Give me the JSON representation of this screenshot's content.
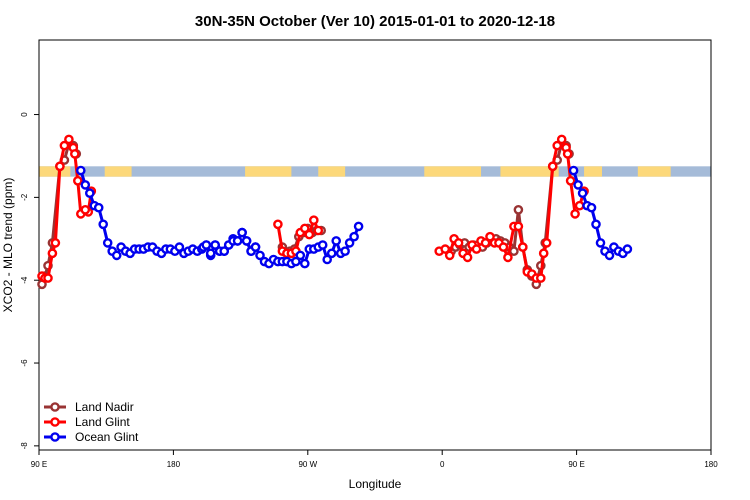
{
  "chart_data": {
    "type": "line",
    "title": "30N-35N October (Ver 10)   2015-01-01 to 2020-12-18",
    "xlabel": "Longitude",
    "ylabel": "XCO2 - MLO trend (ppm)",
    "x_ticks": [
      {
        "value": 90,
        "label": "90 E"
      },
      {
        "value": 180,
        "label": "180"
      },
      {
        "value": 270,
        "label": "90 W"
      },
      {
        "value": 360,
        "label": "0"
      },
      {
        "value": 450,
        "label": "90 E"
      },
      {
        "value": 540,
        "label": "180"
      }
    ],
    "y_ticks": [
      {
        "value": 0,
        "label": "0"
      },
      {
        "value": -2,
        "label": "-2"
      },
      {
        "value": -4,
        "label": "-4"
      },
      {
        "value": -6,
        "label": "-6"
      },
      {
        "value": -8,
        "label": "-8"
      }
    ],
    "xlim": [
      90,
      540
    ],
    "ylim": [
      -8.1,
      1.8
    ],
    "grid": false,
    "legend_position": "bottom-left",
    "colors": {
      "land_nadir": "#993333",
      "land_glint": "#ff0000",
      "ocean_glint": "#0000ee",
      "land_band": "#fcd87a",
      "ocean_band": "#a5bbd8"
    },
    "land_ocean_band": {
      "y_range": [
        -1.5,
        -1.25
      ],
      "land_segments": [
        [
          90,
          111
        ],
        [
          134,
          152
        ],
        [
          228,
          259
        ],
        [
          277,
          295
        ],
        [
          348,
          386
        ],
        [
          399,
          438
        ],
        [
          455,
          467
        ],
        [
          491,
          513
        ]
      ]
    },
    "series": [
      {
        "name": "Land Nadir",
        "color": "#993333",
        "segments": [
          [
            [
              92,
              -4.1
            ],
            [
              94,
              -3.9
            ],
            [
              96,
              -3.65
            ],
            [
              99,
              -3.1
            ],
            [
              104,
              -1.25
            ],
            [
              107,
              -1.1
            ],
            [
              110,
              -0.7
            ],
            [
              113,
              -0.75
            ],
            [
              115,
              -0.95
            ]
          ],
          [
            [
              253,
              -3.2
            ],
            [
              256,
              -3.35
            ],
            [
              258,
              -3.3
            ],
            [
              261,
              -3.25
            ],
            [
              264,
              -2.95
            ],
            [
              267,
              -2.85
            ],
            [
              270,
              -2.75
            ],
            [
              273,
              -2.85
            ],
            [
              276,
              -2.8
            ],
            [
              279,
              -2.8
            ]
          ],
          [
            [
              366,
              -3.3
            ],
            [
              369,
              -3.2
            ],
            [
              372,
              -3.15
            ],
            [
              375,
              -3.1
            ],
            [
              378,
              -3.2
            ],
            [
              381,
              -3.15
            ],
            [
              384,
              -3.15
            ],
            [
              387,
              -3.2
            ],
            [
              390,
              -3.1
            ],
            [
              393,
              -3.05
            ],
            [
              396,
              -3.0
            ],
            [
              399,
              -3.05
            ],
            [
              402,
              -3.1
            ],
            [
              405,
              -3.2
            ],
            [
              408,
              -3.3
            ],
            [
              411,
              -2.3
            ],
            [
              414,
              -3.2
            ],
            [
              417,
              -3.75
            ],
            [
              420,
              -3.9
            ],
            [
              423,
              -4.1
            ],
            [
              426,
              -3.65
            ],
            [
              429,
              -3.1
            ],
            [
              434,
              -1.25
            ],
            [
              437,
              -1.1
            ],
            [
              440,
              -0.7
            ],
            [
              443,
              -0.75
            ],
            [
              445,
              -0.95
            ]
          ]
        ]
      },
      {
        "name": "Land Glint",
        "color": "#ff0000",
        "segments": [
          [
            [
              92,
              -3.9
            ],
            [
              94,
              -3.95
            ],
            [
              96,
              -3.95
            ],
            [
              99,
              -3.35
            ],
            [
              101,
              -3.1
            ],
            [
              104,
              -1.25
            ],
            [
              107,
              -0.75
            ],
            [
              110,
              -0.6
            ],
            [
              113,
              -0.8
            ],
            [
              114,
              -0.95
            ],
            [
              116,
              -1.6
            ],
            [
              118,
              -2.4
            ]
          ],
          [
            [
              125,
              -1.85
            ],
            [
              123,
              -2.35
            ],
            [
              121,
              -2.3
            ]
          ],
          [
            [
              250,
              -2.65
            ],
            [
              253,
              -3.3
            ],
            [
              256,
              -3.35
            ],
            [
              259,
              -3.35
            ],
            [
              262,
              -3.3
            ],
            [
              265,
              -2.85
            ],
            [
              268,
              -2.75
            ],
            [
              271,
              -2.9
            ],
            [
              274,
              -2.55
            ],
            [
              277,
              -2.8
            ]
          ],
          [
            [
              358,
              -3.3
            ],
            [
              362,
              -3.25
            ],
            [
              365,
              -3.4
            ],
            [
              368,
              -3.0
            ],
            [
              371,
              -3.1
            ],
            [
              374,
              -3.35
            ],
            [
              377,
              -3.45
            ],
            [
              380,
              -3.15
            ],
            [
              383,
              -3.25
            ],
            [
              386,
              -3.05
            ],
            [
              389,
              -3.1
            ],
            [
              392,
              -2.95
            ],
            [
              395,
              -3.1
            ],
            [
              398,
              -3.1
            ],
            [
              401,
              -3.2
            ],
            [
              404,
              -3.45
            ],
            [
              408,
              -2.7
            ],
            [
              411,
              -2.7
            ],
            [
              414,
              -3.2
            ],
            [
              417,
              -3.8
            ],
            [
              420,
              -3.85
            ],
            [
              423,
              -3.95
            ],
            [
              426,
              -3.95
            ],
            [
              428,
              -3.35
            ],
            [
              430,
              -3.1
            ],
            [
              434,
              -1.25
            ],
            [
              437,
              -0.75
            ],
            [
              440,
              -0.6
            ],
            [
              443,
              -0.8
            ],
            [
              444,
              -0.95
            ],
            [
              446,
              -1.6
            ],
            [
              449,
              -2.4
            ]
          ],
          [
            [
              452,
              -2.2
            ],
            [
              455,
              -1.85
            ]
          ]
        ]
      },
      {
        "name": "Ocean Glint",
        "color": "#0000ee",
        "segments": [
          [
            [
              118,
              -1.35
            ],
            [
              121,
              -1.7
            ],
            [
              124,
              -1.9
            ],
            [
              127,
              -2.2
            ],
            [
              130,
              -2.25
            ],
            [
              133,
              -2.65
            ],
            [
              136,
              -3.1
            ],
            [
              139,
              -3.3
            ],
            [
              142,
              -3.4
            ],
            [
              145,
              -3.2
            ],
            [
              148,
              -3.3
            ],
            [
              151,
              -3.35
            ],
            [
              154,
              -3.25
            ],
            [
              157,
              -3.25
            ],
            [
              160,
              -3.25
            ],
            [
              163,
              -3.2
            ],
            [
              166,
              -3.2
            ],
            [
              169,
              -3.3
            ],
            [
              172,
              -3.35
            ],
            [
              175,
              -3.25
            ],
            [
              178,
              -3.25
            ],
            [
              181,
              -3.3
            ],
            [
              184,
              -3.2
            ],
            [
              187,
              -3.35
            ],
            [
              190,
              -3.3
            ],
            [
              193,
              -3.25
            ],
            [
              196,
              -3.3
            ],
            [
              199,
              -3.25
            ],
            [
              202,
              -3.15
            ],
            [
              205,
              -3.4
            ],
            [
              208,
              -3.15
            ],
            [
              211,
              -3.3
            ],
            [
              214,
              -3.3
            ],
            [
              217,
              -3.15
            ],
            [
              220,
              -3.0
            ],
            [
              223,
              -3.05
            ],
            [
              226,
              -2.85
            ],
            [
              229,
              -3.05
            ],
            [
              232,
              -3.3
            ],
            [
              235,
              -3.2
            ],
            [
              238,
              -3.4
            ],
            [
              241,
              -3.55
            ],
            [
              244,
              -3.6
            ],
            [
              247,
              -3.5
            ],
            [
              250,
              -3.55
            ],
            [
              253,
              -3.55
            ],
            [
              256,
              -3.55
            ],
            [
              259,
              -3.6
            ],
            [
              262,
              -3.55
            ],
            [
              265,
              -3.4
            ],
            [
              268,
              -3.6
            ],
            [
              271,
              -3.25
            ],
            [
              274,
              -3.25
            ],
            [
              277,
              -3.2
            ],
            [
              280,
              -3.15
            ],
            [
              283,
              -3.5
            ],
            [
              286,
              -3.35
            ],
            [
              289,
              -3.05
            ],
            [
              292,
              -3.35
            ],
            [
              295,
              -3.3
            ],
            [
              298,
              -3.1
            ],
            [
              301,
              -2.95
            ],
            [
              304,
              -2.7
            ]
          ],
          [
            [
              200,
              -3.2
            ],
            [
              202,
              -3.15
            ],
            [
              205,
              -3.35
            ],
            [
              208,
              -3.15
            ],
            [
              211,
              -3.3
            ],
            [
              214,
              -3.3
            ],
            [
              217,
              -3.15
            ],
            [
              220,
              -3.05
            ],
            [
              223,
              -3.05
            ],
            [
              226,
              -2.85
            ],
            [
              229,
              -3.05
            ],
            [
              232,
              -3.3
            ],
            [
              235,
              -3.2
            ]
          ],
          [
            [
              448,
              -1.35
            ],
            [
              451,
              -1.7
            ],
            [
              454,
              -1.9
            ],
            [
              457,
              -2.2
            ],
            [
              460,
              -2.25
            ],
            [
              463,
              -2.65
            ],
            [
              466,
              -3.1
            ],
            [
              469,
              -3.3
            ],
            [
              472,
              -3.4
            ],
            [
              475,
              -3.2
            ],
            [
              478,
              -3.3
            ],
            [
              481,
              -3.35
            ],
            [
              484,
              -3.25
            ]
          ]
        ]
      }
    ]
  }
}
